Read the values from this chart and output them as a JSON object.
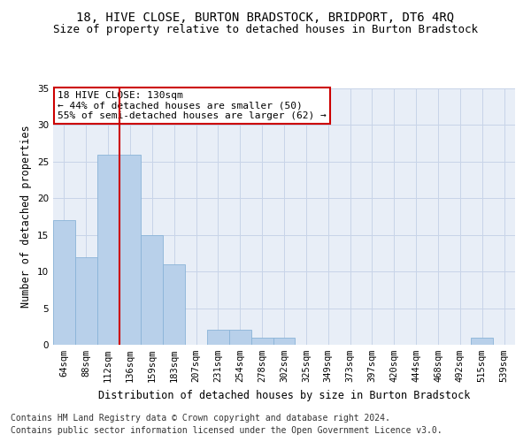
{
  "title": "18, HIVE CLOSE, BURTON BRADSTOCK, BRIDPORT, DT6 4RQ",
  "subtitle": "Size of property relative to detached houses in Burton Bradstock",
  "xlabel": "Distribution of detached houses by size in Burton Bradstock",
  "ylabel": "Number of detached properties",
  "categories": [
    "64sqm",
    "88sqm",
    "112sqm",
    "136sqm",
    "159sqm",
    "183sqm",
    "207sqm",
    "231sqm",
    "254sqm",
    "278sqm",
    "302sqm",
    "325sqm",
    "349sqm",
    "373sqm",
    "397sqm",
    "420sqm",
    "444sqm",
    "468sqm",
    "492sqm",
    "515sqm",
    "539sqm"
  ],
  "values": [
    17,
    12,
    26,
    26,
    15,
    11,
    0,
    2,
    2,
    1,
    1,
    0,
    0,
    0,
    0,
    0,
    0,
    0,
    0,
    1,
    0
  ],
  "bar_color": "#b8d0ea",
  "bar_edge_color": "#8ab4d8",
  "vline_color": "#cc0000",
  "vline_x": 2.5,
  "annotation_text": "18 HIVE CLOSE: 130sqm\n← 44% of detached houses are smaller (50)\n55% of semi-detached houses are larger (62) →",
  "annotation_box_color": "#ffffff",
  "annotation_box_edge_color": "#cc0000",
  "ylim": [
    0,
    35
  ],
  "yticks": [
    0,
    5,
    10,
    15,
    20,
    25,
    30,
    35
  ],
  "footer1": "Contains HM Land Registry data © Crown copyright and database right 2024.",
  "footer2": "Contains public sector information licensed under the Open Government Licence v3.0.",
  "bg_color": "#ffffff",
  "plot_bg_color": "#e8eef7",
  "grid_color": "#c8d4e8",
  "title_fontsize": 10,
  "subtitle_fontsize": 9,
  "axis_label_fontsize": 8.5,
  "tick_fontsize": 7.5,
  "annotation_fontsize": 8,
  "footer_fontsize": 7
}
